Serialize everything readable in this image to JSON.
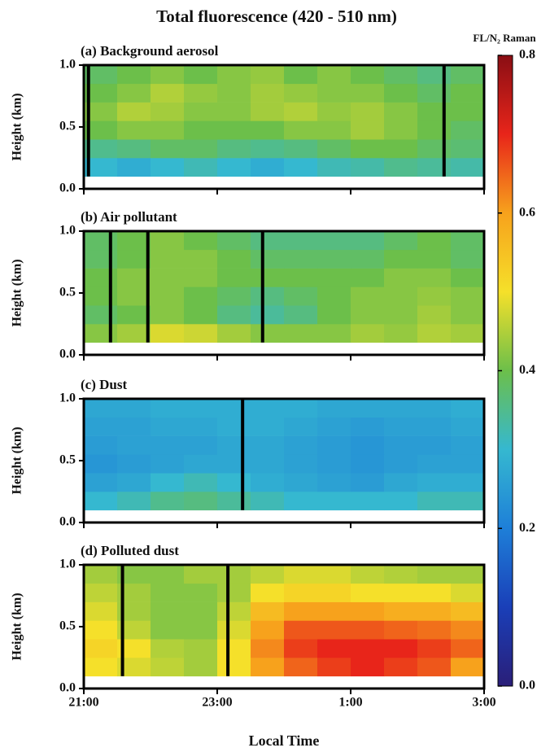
{
  "title": "Total fluorescence (420 - 510 nm)",
  "x_axis": {
    "label": "Local Time",
    "lim": [
      21,
      27
    ],
    "ticks": [
      {
        "value": 21,
        "label": "21:00"
      },
      {
        "value": 23,
        "label": "23:00"
      },
      {
        "value": 25,
        "label": "1:00"
      },
      {
        "value": 27,
        "label": "3:00"
      }
    ]
  },
  "colorbar": {
    "label": "FL/N₂ Raman",
    "zlim": [
      0,
      0.8
    ],
    "ticks": [
      {
        "value": 0,
        "label": "0.0"
      },
      {
        "value": 0.2,
        "label": "0.2"
      },
      {
        "value": 0.4,
        "label": "0.4"
      },
      {
        "value": 0.6,
        "label": "0.6"
      },
      {
        "value": 0.8,
        "label": "0.8"
      }
    ],
    "colors": [
      "#2a1e78",
      "#1a3fb8",
      "#1e7fd8",
      "#35b8d0",
      "#6cbf4a",
      "#f5e02a",
      "#f7a21c",
      "#e8251a",
      "#8a0e14"
    ]
  },
  "chart_data": [
    {
      "type": "heatmap",
      "title": "(a) Background aerosol",
      "ylabel": "Height (km)",
      "ylim": [
        0,
        1
      ],
      "yticks": [
        {
          "value": 0,
          "label": "0.0"
        },
        0.5,
        {
          "value": 1,
          "label": "1.0"
        }
      ],
      "y_edges": [
        0.1,
        0.25,
        0.4,
        0.55,
        0.7,
        0.85,
        1.0
      ],
      "gaps": [
        21.07,
        26.4
      ],
      "values": [
        [
          0.3,
          0.28,
          0.3,
          0.32,
          0.3,
          0.28,
          0.3,
          0.32,
          0.33,
          0.35,
          0.34,
          0.33
        ],
        [
          0.35,
          0.36,
          0.38,
          0.38,
          0.36,
          0.35,
          0.36,
          0.38,
          0.4,
          0.4,
          0.38,
          0.37
        ],
        [
          0.4,
          0.42,
          0.42,
          0.4,
          0.4,
          0.4,
          0.42,
          0.42,
          0.44,
          0.42,
          0.4,
          0.38
        ],
        [
          0.42,
          0.45,
          0.44,
          0.42,
          0.42,
          0.44,
          0.45,
          0.43,
          0.44,
          0.42,
          0.4,
          0.4
        ],
        [
          0.4,
          0.42,
          0.45,
          0.43,
          0.42,
          0.44,
          0.43,
          0.42,
          0.42,
          0.4,
          0.38,
          0.4
        ],
        [
          0.38,
          0.4,
          0.42,
          0.4,
          0.42,
          0.43,
          0.4,
          0.42,
          0.4,
          0.38,
          0.36,
          0.38
        ]
      ]
    },
    {
      "type": "heatmap",
      "title": "(b) Air pollutant",
      "ylabel": "Height (km)",
      "ylim": [
        0,
        1
      ],
      "yticks": [
        {
          "value": 0,
          "label": "0.0"
        },
        0.5,
        {
          "value": 1,
          "label": "1.0"
        }
      ],
      "y_edges": [
        0.1,
        0.25,
        0.4,
        0.55,
        0.7,
        0.85,
        1.0
      ],
      "gaps": [
        21.4,
        21.96,
        23.68
      ],
      "values": [
        [
          0.42,
          0.44,
          0.48,
          0.47,
          0.44,
          0.42,
          0.42,
          0.42,
          0.44,
          0.43,
          0.45,
          0.44
        ],
        [
          0.38,
          0.4,
          0.42,
          0.4,
          0.36,
          0.34,
          0.36,
          0.4,
          0.42,
          0.42,
          0.44,
          0.42
        ],
        [
          0.4,
          0.42,
          0.42,
          0.4,
          0.38,
          0.36,
          0.38,
          0.4,
          0.42,
          0.42,
          0.43,
          0.42
        ],
        [
          0.4,
          0.42,
          0.42,
          0.42,
          0.4,
          0.4,
          0.4,
          0.4,
          0.4,
          0.42,
          0.42,
          0.4
        ],
        [
          0.38,
          0.4,
          0.42,
          0.42,
          0.4,
          0.38,
          0.38,
          0.38,
          0.38,
          0.4,
          0.4,
          0.38
        ],
        [
          0.38,
          0.4,
          0.42,
          0.4,
          0.38,
          0.36,
          0.36,
          0.36,
          0.36,
          0.38,
          0.4,
          0.38
        ]
      ]
    },
    {
      "type": "heatmap",
      "title": "(c) Dust",
      "ylabel": "Height (km)",
      "ylim": [
        0,
        1
      ],
      "yticks": [
        {
          "value": 0,
          "label": "0.0"
        },
        0.5,
        {
          "value": 1,
          "label": "1.0"
        }
      ],
      "y_edges": [
        0.1,
        0.25,
        0.4,
        0.55,
        0.7,
        0.85,
        1.0
      ],
      "gaps": [
        23.38
      ],
      "values": [
        [
          0.3,
          0.32,
          0.35,
          0.36,
          0.34,
          0.32,
          0.3,
          0.3,
          0.3,
          0.3,
          0.32,
          0.32
        ],
        [
          0.26,
          0.27,
          0.3,
          0.32,
          0.3,
          0.28,
          0.27,
          0.26,
          0.25,
          0.27,
          0.28,
          0.28
        ],
        [
          0.24,
          0.25,
          0.26,
          0.27,
          0.27,
          0.27,
          0.26,
          0.25,
          0.24,
          0.25,
          0.26,
          0.26
        ],
        [
          0.25,
          0.26,
          0.26,
          0.26,
          0.27,
          0.27,
          0.26,
          0.25,
          0.24,
          0.25,
          0.25,
          0.26
        ],
        [
          0.26,
          0.26,
          0.27,
          0.27,
          0.28,
          0.28,
          0.27,
          0.26,
          0.25,
          0.26,
          0.26,
          0.27
        ],
        [
          0.27,
          0.27,
          0.28,
          0.28,
          0.28,
          0.28,
          0.28,
          0.27,
          0.27,
          0.27,
          0.27,
          0.28
        ]
      ]
    },
    {
      "type": "heatmap",
      "title": "(d) Polluted dust",
      "ylabel": "Height (km)",
      "ylim": [
        0,
        1
      ],
      "yticks": [
        {
          "value": 0,
          "label": "0.0"
        },
        0.5,
        {
          "value": 1,
          "label": "1.0"
        }
      ],
      "y_edges": [
        0.1,
        0.25,
        0.4,
        0.55,
        0.7,
        0.85,
        1.0
      ],
      "gaps": [
        21.58,
        23.16
      ],
      "values": [
        [
          0.5,
          0.48,
          0.46,
          0.44,
          0.5,
          0.6,
          0.65,
          0.68,
          0.7,
          0.68,
          0.66,
          0.6
        ],
        [
          0.52,
          0.5,
          0.45,
          0.44,
          0.5,
          0.62,
          0.68,
          0.7,
          0.7,
          0.7,
          0.68,
          0.65
        ],
        [
          0.5,
          0.46,
          0.42,
          0.42,
          0.48,
          0.6,
          0.66,
          0.66,
          0.66,
          0.65,
          0.64,
          0.62
        ],
        [
          0.48,
          0.44,
          0.42,
          0.42,
          0.46,
          0.56,
          0.6,
          0.6,
          0.6,
          0.58,
          0.58,
          0.56
        ],
        [
          0.46,
          0.44,
          0.42,
          0.42,
          0.44,
          0.5,
          0.52,
          0.52,
          0.5,
          0.5,
          0.5,
          0.48
        ],
        [
          0.44,
          0.42,
          0.42,
          0.44,
          0.44,
          0.46,
          0.48,
          0.48,
          0.46,
          0.45,
          0.44,
          0.44
        ]
      ]
    }
  ]
}
